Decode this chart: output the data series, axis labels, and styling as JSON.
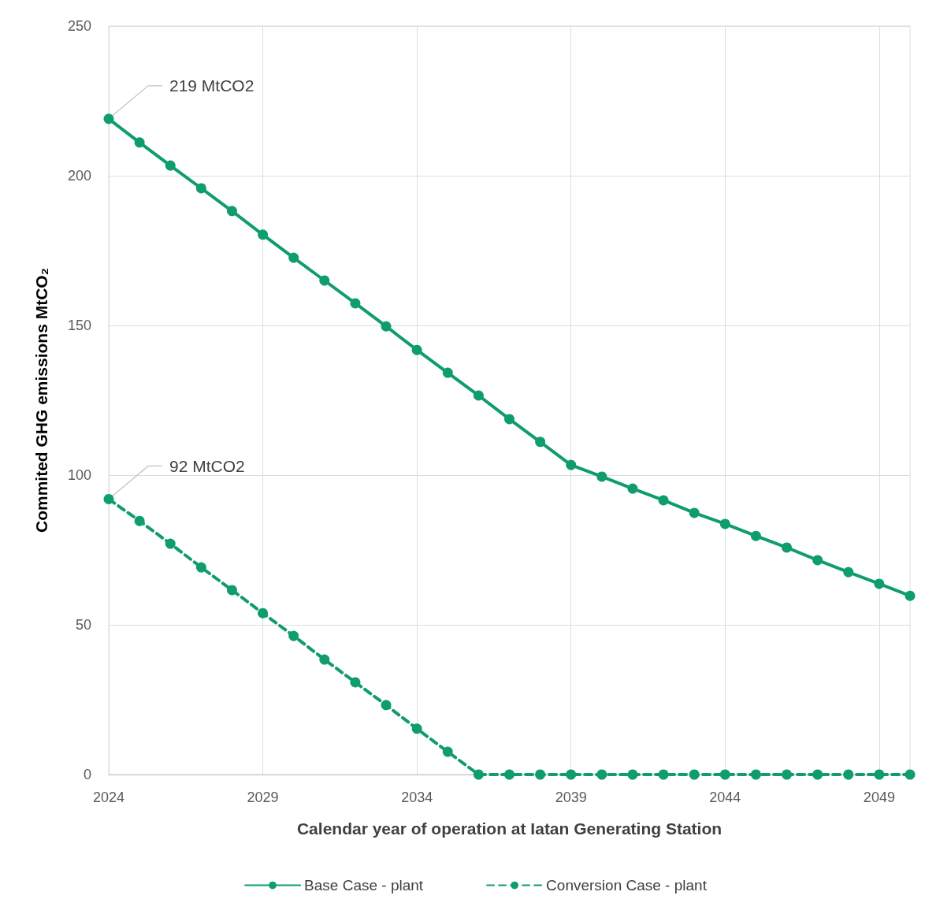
{
  "chart_data": {
    "type": "line",
    "xlabel": "Calendar year of operation at Iatan Generating Station",
    "ylabel": "Commited GHG emissions MtCO₂",
    "x": [
      2024,
      2025,
      2026,
      2027,
      2028,
      2029,
      2030,
      2031,
      2032,
      2033,
      2034,
      2035,
      2036,
      2037,
      2038,
      2039,
      2040,
      2041,
      2042,
      2043,
      2044,
      2045,
      2046,
      2047,
      2048,
      2049,
      2050
    ],
    "series": [
      {
        "name": "Base Case - plant",
        "color": "#0f9d6e",
        "line_style": "solid",
        "values": [
          219,
          211.1,
          203.4,
          195.8,
          188.2,
          180.3,
          172.6,
          165,
          157.4,
          149.7,
          141.8,
          134.2,
          126.6,
          118.7,
          111.1,
          103.4,
          99.5,
          95.5,
          91.6,
          87.4,
          83.7,
          79.7,
          75.8,
          71.6,
          67.6,
          63.7,
          59.7
        ]
      },
      {
        "name": "Conversion Case - plant",
        "color": "#0f9d6e",
        "line_style": "dashed",
        "values": [
          92,
          84.7,
          77.1,
          69.2,
          61.6,
          53.9,
          46.3,
          38.4,
          30.8,
          23.2,
          15.3,
          7.6,
          0,
          0,
          0,
          0,
          0,
          0,
          0,
          0,
          0,
          0,
          0,
          0,
          0,
          0,
          0
        ]
      }
    ],
    "annotations": [
      {
        "text": "219 MtCO2",
        "x": 2024,
        "y": 219
      },
      {
        "text": "92 MtCO2",
        "x": 2024,
        "y": 92
      }
    ],
    "xlim": [
      2024,
      2050
    ],
    "xticks": [
      2024,
      2029,
      2034,
      2039,
      2044,
      2049
    ],
    "ylim": [
      0,
      250
    ],
    "yticks": [
      0,
      50,
      100,
      150,
      200,
      250
    ],
    "grid": true,
    "legend": "bottom",
    "marker": "circle"
  }
}
